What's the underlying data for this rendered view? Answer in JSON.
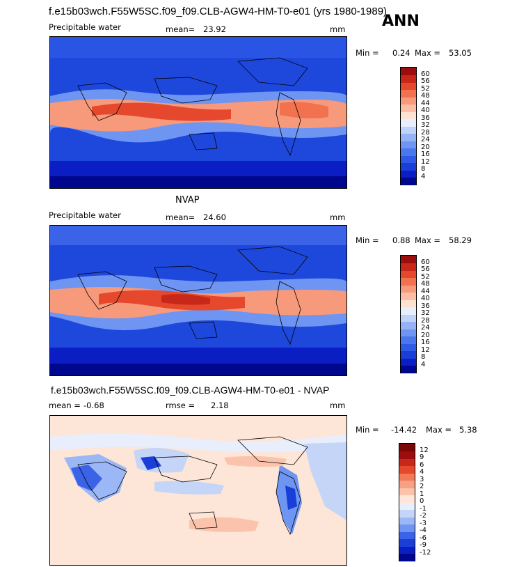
{
  "header": {
    "title": "f.e15b03wch.F55W5SC.f09_f09.CLB-AGW4-HM-T0-e01 (yrs 1980-1989)",
    "season": "ANN"
  },
  "panels": [
    {
      "heading": "",
      "variable": "Precipitable water",
      "mean_label": "mean=",
      "mean_value": "23.92",
      "units": "mm",
      "min_label": "Min =",
      "min_value": "0.24",
      "max_label": "Max =",
      "max_value": "53.05",
      "levels": [
        "4",
        "8",
        "12",
        "16",
        "20",
        "24",
        "28",
        "32",
        "36",
        "40",
        "44",
        "48",
        "52",
        "56",
        "60"
      ],
      "colors": [
        "#00078f",
        "#0a1ec3",
        "#1a3fd8",
        "#2f5ae6",
        "#4a76ee",
        "#6e95f2",
        "#94b2f5",
        "#bfd2f8",
        "#e8eefc",
        "#fde2d2",
        "#fbbda3",
        "#f79a7b",
        "#f2714f",
        "#e5482c",
        "#c8281a",
        "#9c0d0d"
      ],
      "colors_note": "low-to-high"
    },
    {
      "heading": "NVAP",
      "variable": "Precipitable water",
      "mean_label": "mean=",
      "mean_value": "24.60",
      "units": "mm",
      "min_label": "Min =",
      "min_value": "0.88",
      "max_label": "Max =",
      "max_value": "58.29",
      "levels": [
        "4",
        "8",
        "12",
        "16",
        "20",
        "24",
        "28",
        "32",
        "36",
        "40",
        "44",
        "48",
        "52",
        "56",
        "60"
      ],
      "colors": [
        "#00078f",
        "#0a1ec3",
        "#1a3fd8",
        "#2f5ae6",
        "#4a76ee",
        "#6e95f2",
        "#94b2f5",
        "#bfd2f8",
        "#e8eefc",
        "#fde2d2",
        "#fbbda3",
        "#f79a7b",
        "#f2714f",
        "#e5482c",
        "#c8281a",
        "#9c0d0d"
      ]
    },
    {
      "heading": "f.e15b03wch.F55W5SC.f09_f09.CLB-AGW4-HM-T0-e01 - NVAP",
      "mean_label": "mean =",
      "mean_value": "-0.68",
      "rmse_label": "rmse =",
      "rmse_value": "2.18",
      "units": "mm",
      "min_label": "Min =",
      "min_value": "-14.42",
      "max_label": "Max =",
      "max_value": "5.38",
      "levels": [
        "-12",
        "-9",
        "-6",
        "-4",
        "-3",
        "-2",
        "-1",
        "0",
        "1",
        "2",
        "3",
        "4",
        "6",
        "9",
        "12"
      ],
      "colors": [
        "#00078f",
        "#0a1ec3",
        "#1a3fd8",
        "#3b63e8",
        "#6e95f2",
        "#9cb7f5",
        "#c4d5f8",
        "#e8eefc",
        "#fde6d8",
        "#fbc3ab",
        "#f7a083",
        "#f27a57",
        "#e5482c",
        "#c8281a",
        "#9c0d0d",
        "#7a0606"
      ]
    }
  ]
}
